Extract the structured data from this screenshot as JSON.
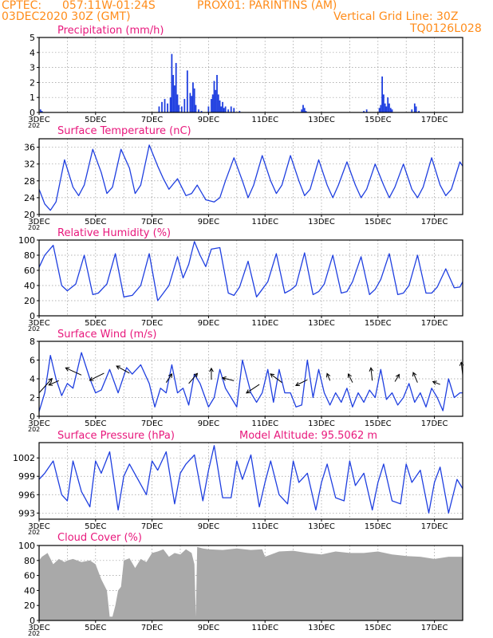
{
  "header": {
    "source": "CPTEC:",
    "location": "057:11W-01:24S",
    "station": "PROX01: PARINTINS (AM)",
    "run_date": "03DEC2020 30Z (GMT)",
    "grid_note": "Vertical Grid Line: 30Z",
    "code": "TQ0126L028"
  },
  "colors": {
    "header_text": "#ff8c1a",
    "panel_title": "#e8187c",
    "series": "#1f3fe0",
    "cloud_fill": "#a9a9a9",
    "wind_arrow": "#000000"
  },
  "x_axis": {
    "range_days": [
      3,
      18
    ],
    "date_labels": [
      "3DEC",
      "5DEC",
      "7DEC",
      "9DEC",
      "11DEC",
      "13DEC",
      "15DEC",
      "17DEC"
    ],
    "date_label_days": [
      3,
      5,
      7,
      9,
      11,
      13,
      15,
      17
    ],
    "vertical_grid_days": [
      3,
      4,
      5,
      6,
      7,
      8,
      9,
      10,
      11,
      12,
      13,
      14,
      15,
      16,
      17
    ],
    "year_fragment": "202"
  },
  "chart_data": [
    {
      "id": "precip",
      "type": "bar",
      "title": "Precipitation (mm/h)",
      "ylim": [
        0,
        5
      ],
      "yticks": [
        0,
        1,
        2,
        3,
        4,
        5
      ],
      "ytick_labels": [
        "0",
        "1",
        "2",
        "3",
        "4",
        "5"
      ],
      "grid": true,
      "x": [
        3.05,
        3.1,
        7.25,
        7.35,
        7.45,
        7.55,
        7.65,
        7.7,
        7.75,
        7.8,
        7.85,
        7.9,
        7.95,
        8.05,
        8.15,
        8.25,
        8.35,
        8.4,
        8.45,
        8.5,
        8.55,
        8.65,
        8.75,
        9.0,
        9.1,
        9.15,
        9.2,
        9.25,
        9.3,
        9.35,
        9.4,
        9.45,
        9.5,
        9.55,
        9.6,
        9.7,
        9.8,
        9.9,
        10.1,
        12.3,
        12.35,
        12.4,
        12.45,
        14.5,
        14.6,
        15.05,
        15.1,
        15.15,
        15.2,
        15.25,
        15.3,
        15.35,
        15.4,
        15.45,
        15.5,
        16.2,
        16.3,
        16.35,
        16.45
      ],
      "values": [
        0.2,
        0.1,
        0.4,
        0.7,
        0.9,
        0.6,
        1.0,
        3.9,
        2.5,
        1.8,
        3.3,
        1.2,
        0.5,
        0.4,
        0.9,
        2.8,
        1.3,
        1.1,
        2.0,
        1.6,
        0.5,
        0.2,
        0.1,
        0.4,
        0.9,
        1.2,
        2.1,
        1.5,
        2.5,
        1.2,
        0.8,
        0.4,
        0.7,
        0.3,
        0.4,
        0.2,
        0.4,
        0.3,
        0.1,
        0.2,
        0.5,
        0.3,
        0.1,
        0.1,
        0.2,
        0.3,
        0.5,
        2.4,
        1.2,
        0.6,
        0.4,
        1.0,
        0.6,
        0.3,
        0.2,
        0.2,
        0.6,
        0.4,
        0.1
      ]
    },
    {
      "id": "temperature",
      "type": "line",
      "title": "Surface Temperature (nC)",
      "ylim": [
        20,
        38
      ],
      "yticks": [
        20,
        24,
        28,
        32,
        36
      ],
      "ytick_labels": [
        "20",
        "24",
        "28",
        "32",
        "36"
      ],
      "grid": true,
      "x": [
        3.0,
        3.2,
        3.4,
        3.6,
        3.9,
        4.2,
        4.4,
        4.6,
        4.9,
        5.2,
        5.4,
        5.6,
        5.9,
        6.2,
        6.4,
        6.6,
        6.9,
        7.2,
        7.4,
        7.6,
        7.9,
        8.2,
        8.4,
        8.6,
        8.9,
        9.2,
        9.4,
        9.6,
        9.9,
        10.2,
        10.4,
        10.6,
        10.9,
        11.2,
        11.4,
        11.6,
        11.9,
        12.2,
        12.4,
        12.6,
        12.9,
        13.2,
        13.4,
        13.6,
        13.9,
        14.2,
        14.4,
        14.6,
        14.9,
        15.2,
        15.4,
        15.6,
        15.9,
        16.2,
        16.4,
        16.6,
        16.9,
        17.2,
        17.4,
        17.6,
        17.9,
        18.0
      ],
      "values": [
        26.0,
        22.5,
        21.0,
        23.0,
        33.0,
        26.5,
        24.5,
        27.0,
        35.5,
        30.0,
        25.0,
        26.5,
        35.5,
        31.0,
        25.0,
        27.0,
        36.5,
        31.5,
        28.5,
        26.0,
        28.5,
        24.5,
        25.0,
        27.0,
        23.5,
        23.0,
        24.0,
        28.0,
        33.5,
        28.0,
        24.0,
        27.0,
        34.0,
        28.0,
        25.0,
        27.0,
        34.0,
        28.0,
        24.5,
        26.0,
        33.0,
        27.0,
        24.0,
        27.0,
        32.5,
        27.0,
        24.0,
        26.0,
        32.0,
        27.0,
        24.0,
        26.5,
        32.0,
        26.0,
        24.0,
        26.5,
        33.5,
        27.0,
        24.5,
        26.0,
        32.5,
        31.5
      ]
    },
    {
      "id": "humidity",
      "type": "line",
      "title": "Relative Humidity (%)",
      "ylim": [
        0,
        100
      ],
      "yticks": [
        0,
        20,
        40,
        60,
        80,
        100
      ],
      "ytick_labels": [
        "0",
        "20",
        "40",
        "60",
        "80",
        "100"
      ],
      "grid": true,
      "x": [
        3.0,
        3.2,
        3.5,
        3.8,
        4.0,
        4.3,
        4.6,
        4.9,
        5.1,
        5.4,
        5.7,
        6.0,
        6.3,
        6.6,
        6.9,
        7.2,
        7.4,
        7.6,
        7.9,
        8.1,
        8.3,
        8.5,
        8.7,
        8.9,
        9.1,
        9.4,
        9.7,
        9.9,
        10.1,
        10.4,
        10.7,
        10.9,
        11.1,
        11.4,
        11.7,
        11.9,
        12.1,
        12.4,
        12.7,
        12.9,
        13.1,
        13.4,
        13.7,
        13.9,
        14.1,
        14.4,
        14.7,
        14.9,
        15.1,
        15.4,
        15.7,
        15.9,
        16.1,
        16.4,
        16.7,
        16.9,
        17.1,
        17.4,
        17.7,
        17.9,
        18.0
      ],
      "values": [
        64,
        80,
        93,
        40,
        33,
        42,
        80,
        28,
        30,
        42,
        82,
        25,
        27,
        40,
        82,
        20,
        30,
        40,
        78,
        50,
        68,
        98,
        80,
        65,
        88,
        90,
        30,
        27,
        38,
        72,
        25,
        35,
        45,
        82,
        30,
        34,
        40,
        83,
        28,
        32,
        42,
        80,
        30,
        32,
        45,
        78,
        28,
        35,
        48,
        82,
        28,
        30,
        40,
        80,
        30,
        30,
        38,
        62,
        37,
        38,
        45
      ]
    },
    {
      "id": "wind",
      "type": "line",
      "title": "Surface Wind (m/s)",
      "ylim": [
        0,
        8
      ],
      "yticks": [
        0,
        2,
        4,
        6,
        8
      ],
      "ytick_labels": [
        "0",
        "2",
        "4",
        "6",
        "8"
      ],
      "grid": true,
      "x": [
        3.0,
        3.2,
        3.4,
        3.6,
        3.8,
        4.0,
        4.2,
        4.5,
        4.8,
        5.0,
        5.2,
        5.5,
        5.8,
        6.1,
        6.3,
        6.6,
        6.9,
        7.1,
        7.3,
        7.5,
        7.7,
        7.9,
        8.1,
        8.3,
        8.5,
        8.7,
        9.0,
        9.2,
        9.4,
        9.6,
        9.8,
        10.0,
        10.2,
        10.5,
        10.7,
        10.9,
        11.1,
        11.3,
        11.5,
        11.7,
        11.9,
        12.1,
        12.3,
        12.5,
        12.7,
        12.9,
        13.1,
        13.3,
        13.5,
        13.7,
        13.9,
        14.1,
        14.3,
        14.5,
        14.7,
        14.9,
        15.1,
        15.3,
        15.5,
        15.7,
        15.9,
        16.1,
        16.3,
        16.5,
        16.7,
        16.9,
        17.1,
        17.3,
        17.5,
        17.7,
        17.9,
        18.0
      ],
      "values": [
        0.5,
        2.5,
        6.5,
        4.0,
        2.2,
        3.5,
        3.0,
        6.8,
        4.0,
        2.5,
        2.8,
        5.0,
        2.5,
        5.2,
        4.5,
        5.5,
        3.5,
        1.0,
        3.0,
        2.5,
        5.5,
        2.5,
        3.0,
        1.2,
        4.5,
        3.5,
        1.0,
        2.0,
        5.0,
        3.0,
        2.0,
        1.0,
        6.0,
        2.5,
        1.5,
        2.5,
        5.0,
        1.5,
        5.0,
        2.5,
        2.5,
        1.0,
        1.2,
        6.0,
        2.0,
        5.0,
        2.5,
        1.2,
        2.5,
        1.5,
        3.0,
        1.0,
        2.5,
        1.5,
        2.8,
        2.0,
        5.0,
        1.8,
        2.5,
        1.2,
        2.0,
        3.5,
        1.5,
        2.5,
        1.0,
        3.0,
        2.0,
        0.6,
        4.0,
        2.0,
        2.5,
        2.5
      ]
    },
    {
      "id": "wind_vectors",
      "type": "scatter",
      "x": [
        3.0,
        3.7,
        4.5,
        5.3,
        6.2,
        7.5,
        8.3,
        9.1,
        9.9,
        10.8,
        11.6,
        12.5,
        13.3,
        14.1,
        14.8,
        15.6,
        16.4,
        17.2,
        18.0
      ],
      "y": [
        2.5,
        3.8,
        4.4,
        4.6,
        4.6,
        3.6,
        3.5,
        3.9,
        3.8,
        3.4,
        3.6,
        3.9,
        3.8,
        3.6,
        3.8,
        3.7,
        3.6,
        3.4,
        4.4
      ],
      "u": [
        0.9,
        -0.7,
        -1.1,
        -1.0,
        -0.9,
        0.4,
        0.6,
        0.0,
        -0.8,
        -0.9,
        -0.8,
        -0.8,
        -0.2,
        -0.3,
        -0.1,
        0.3,
        -0.3,
        -0.5,
        -0.1
      ],
      "v": [
        1.0,
        -0.3,
        0.5,
        -0.5,
        0.5,
        0.6,
        0.7,
        0.8,
        0.2,
        -0.6,
        0.6,
        -0.4,
        0.5,
        0.6,
        0.9,
        0.5,
        0.7,
        0.2,
        0.9
      ]
    },
    {
      "id": "pressure",
      "type": "line",
      "title": "Surface Pressure (hPa)",
      "subtitle": "Model Altitude: 95.5062 m",
      "ylim": [
        992,
        1004.5
      ],
      "yticks": [
        993,
        996,
        999,
        1002
      ],
      "ytick_labels": [
        "993",
        "996",
        "999",
        "1002"
      ],
      "grid": true,
      "x": [
        3.0,
        3.2,
        3.5,
        3.8,
        4.0,
        4.2,
        4.5,
        4.8,
        5.0,
        5.2,
        5.5,
        5.8,
        6.0,
        6.2,
        6.5,
        6.8,
        7.0,
        7.2,
        7.5,
        7.8,
        8.0,
        8.2,
        8.5,
        8.8,
        9.0,
        9.2,
        9.5,
        9.8,
        10.0,
        10.2,
        10.5,
        10.8,
        11.0,
        11.2,
        11.5,
        11.8,
        12.0,
        12.2,
        12.5,
        12.8,
        13.0,
        13.2,
        13.5,
        13.8,
        14.0,
        14.2,
        14.5,
        14.8,
        15.0,
        15.2,
        15.5,
        15.8,
        16.0,
        16.2,
        16.5,
        16.8,
        17.0,
        17.2,
        17.5,
        17.8,
        18.0
      ],
      "values": [
        998.5,
        999.5,
        1001.5,
        996.0,
        995.0,
        1001.5,
        996.5,
        994.0,
        1001.5,
        999.5,
        1003.0,
        993.5,
        999.0,
        1001.0,
        998.5,
        996.0,
        1001.5,
        1000.0,
        1003.0,
        994.5,
        999.5,
        1001.0,
        1002.5,
        995.0,
        1000.0,
        1004.0,
        995.5,
        995.5,
        1001.5,
        998.5,
        1002.5,
        994.0,
        998.0,
        1001.5,
        996.0,
        994.5,
        1001.5,
        998.0,
        999.5,
        993.5,
        998.0,
        1001.0,
        995.5,
        995.0,
        1001.5,
        997.5,
        999.5,
        993.5,
        998.0,
        1001.0,
        995.0,
        994.5,
        1001.0,
        998.0,
        1000.0,
        993.0,
        998.0,
        1000.5,
        993.0,
        998.5,
        997.0
      ]
    },
    {
      "id": "cloud",
      "type": "area",
      "title": "Cloud Cover (%)",
      "ylim": [
        0,
        100
      ],
      "yticks": [
        0,
        20,
        40,
        60,
        80,
        100
      ],
      "ytick_labels": [
        "0",
        "20",
        "40",
        "60",
        "80",
        "100"
      ],
      "grid": true,
      "x": [
        3.0,
        3.1,
        3.3,
        3.5,
        3.7,
        3.9,
        4.0,
        4.2,
        4.5,
        4.8,
        5.0,
        5.2,
        5.4,
        5.5,
        5.6,
        5.7,
        5.8,
        5.9,
        6.0,
        6.2,
        6.4,
        6.6,
        6.8,
        7.0,
        7.2,
        7.4,
        7.6,
        7.8,
        8.0,
        8.2,
        8.4,
        8.5,
        8.55,
        8.6,
        8.8,
        9.0,
        9.5,
        10.0,
        10.5,
        10.9,
        11.0,
        11.5,
        12.0,
        12.5,
        13.0,
        13.5,
        14.0,
        14.5,
        15.0,
        15.5,
        16.0,
        16.5,
        17.0,
        17.5,
        18.0
      ],
      "values": [
        80,
        85,
        90,
        75,
        82,
        78,
        80,
        82,
        78,
        80,
        75,
        55,
        40,
        5,
        5,
        20,
        40,
        45,
        80,
        83,
        70,
        82,
        78,
        90,
        92,
        95,
        85,
        90,
        88,
        95,
        90,
        75,
        5,
        98,
        96,
        95,
        94,
        96,
        94,
        95,
        85,
        92,
        93,
        90,
        88,
        92,
        90,
        90,
        92,
        88,
        86,
        85,
        82,
        85,
        85
      ]
    }
  ]
}
